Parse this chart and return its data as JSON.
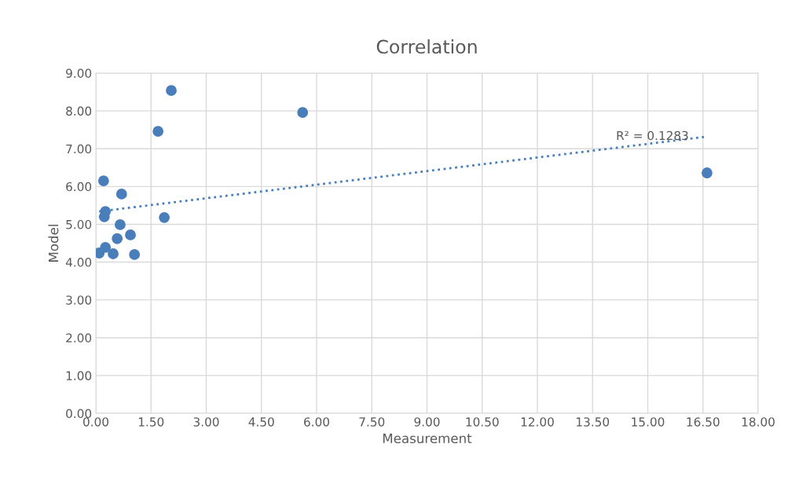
{
  "chart_data": {
    "type": "scatter",
    "title": "Correlation",
    "xlabel": "Measurement",
    "ylabel": "Model",
    "grid": true,
    "marker": "circle",
    "series": [
      {
        "color": "#4a7ebb",
        "x": [
          0.09,
          0.26,
          0.47,
          0.58,
          0.66,
          0.23,
          0.26,
          0.21,
          0.7,
          0.94,
          1.05,
          1.86,
          1.69,
          2.05,
          5.62,
          16.61
        ],
        "values": [
          4.24,
          4.39,
          4.22,
          4.62,
          4.99,
          5.2,
          5.34,
          6.15,
          5.8,
          4.72,
          4.2,
          5.18,
          7.46,
          8.54,
          7.96,
          6.36
        ]
      },
      {
        "type": "line",
        "color": "#4a7ebb",
        "line_style": "dotted",
        "marker": "none",
        "x": [
          0.09,
          16.61
        ],
        "values": [
          5.34,
          7.32
        ]
      }
    ],
    "annotations": [
      "R² = 0.1283"
    ],
    "xlim": [
      0,
      18
    ],
    "ylim": [
      0,
      9
    ],
    "xticks": [
      {
        "value": 0,
        "label": "0.00"
      },
      {
        "value": 1.5,
        "label": "1.50"
      },
      {
        "value": 3,
        "label": "3.00"
      },
      {
        "value": 4.5,
        "label": "4.50"
      },
      {
        "value": 6,
        "label": "6.00"
      },
      {
        "value": 7.5,
        "label": "7.50"
      },
      {
        "value": 9,
        "label": "9.00"
      },
      {
        "value": 10.5,
        "label": "10.50"
      },
      {
        "value": 12,
        "label": "12.00"
      },
      {
        "value": 13.5,
        "label": "13.50"
      },
      {
        "value": 15,
        "label": "15.00"
      },
      {
        "value": 16.5,
        "label": "16.50"
      },
      {
        "value": 18,
        "label": "18.00"
      }
    ],
    "yticks": [
      {
        "value": 0,
        "label": "0.00"
      },
      {
        "value": 1,
        "label": "1.00"
      },
      {
        "value": 2,
        "label": "2.00"
      },
      {
        "value": 3,
        "label": "3.00"
      },
      {
        "value": 4,
        "label": "4.00"
      },
      {
        "value": 5,
        "label": "5.00"
      },
      {
        "value": 6,
        "label": "6.00"
      },
      {
        "value": 7,
        "label": "7.00"
      },
      {
        "value": 8,
        "label": "8.00"
      },
      {
        "value": 9,
        "label": "9.00"
      }
    ]
  }
}
